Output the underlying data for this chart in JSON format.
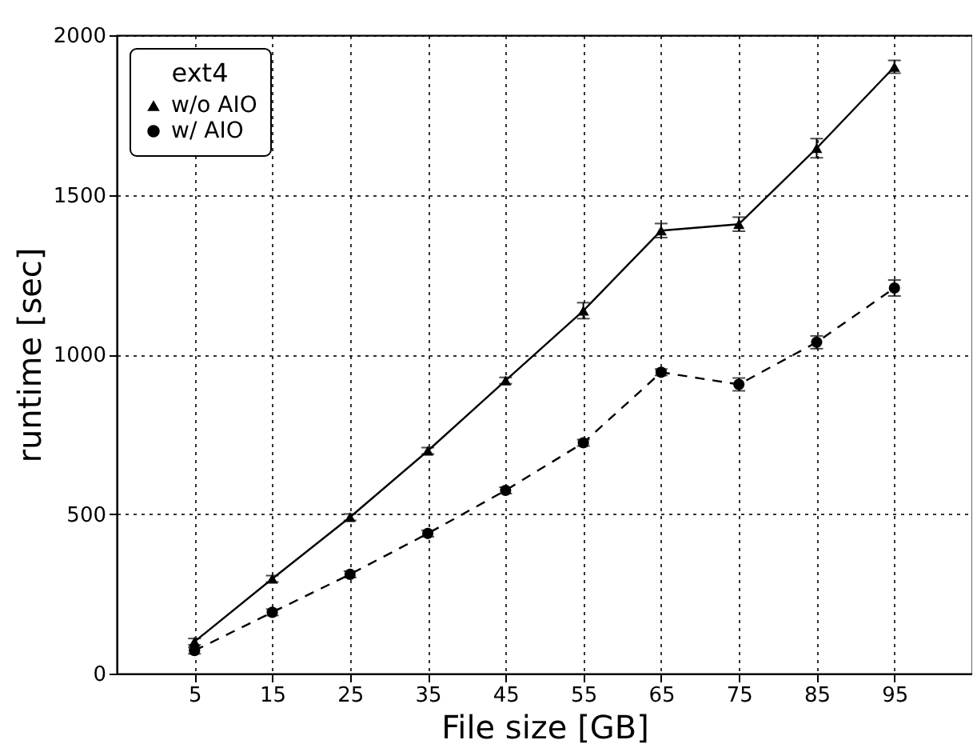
{
  "chart_data": {
    "type": "line",
    "xlabel": "File size [GB]",
    "ylabel": "runtime [sec]",
    "legend_title": "ext4",
    "x": [
      5,
      15,
      25,
      35,
      45,
      55,
      65,
      75,
      85,
      95
    ],
    "series": [
      {
        "name": "w/o AIO",
        "color": "#000000",
        "marker": "triangle",
        "line_style": "solid",
        "values": [
          100,
          297,
          490,
          698,
          918,
          1137,
          1388,
          1408,
          1646,
          1901
        ],
        "errors": [
          10,
          10,
          10,
          10,
          10,
          25,
          22,
          22,
          30,
          20
        ]
      },
      {
        "name": "w/ AIO",
        "color": "#000000",
        "marker": "circle",
        "line_style": "dashed",
        "values": [
          72,
          192,
          311,
          439,
          574,
          723,
          944,
          906,
          1038,
          1208
        ],
        "errors": [
          10,
          10,
          10,
          10,
          10,
          10,
          10,
          20,
          20,
          25
        ]
      }
    ],
    "xlim": [
      -5,
      105
    ],
    "xticks": [
      5,
      15,
      25,
      35,
      45,
      55,
      65,
      75,
      85,
      95
    ],
    "ylim": [
      0,
      2000
    ],
    "yticks": [
      0,
      500,
      1000,
      1500,
      2000
    ],
    "grid": true,
    "legend": "top left"
  }
}
